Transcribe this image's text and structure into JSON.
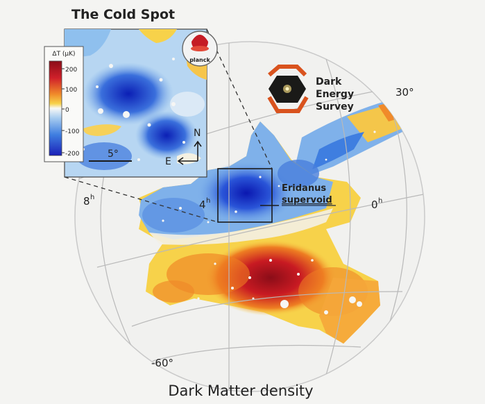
{
  "title": "The Cold Spot",
  "caption": "Dark Matter density",
  "colorbar": {
    "label": "ΔT (μK)",
    "ticks": [
      "200",
      "100",
      "0",
      "-100",
      "-200"
    ]
  },
  "scale_bar_label": "5°",
  "compass": {
    "north": "N",
    "east": "E"
  },
  "logos": {
    "planck": "planck",
    "des_line1": "Dark",
    "des_line2": "Energy",
    "des_line3": "Survey"
  },
  "annotation": {
    "line1": "Eridanus",
    "line2": "supervoid"
  },
  "axis_labels": {
    "ra_8h": "8",
    "ra_4h": "4",
    "ra_0h": "0",
    "ra_unit": "h",
    "dec_30": "30°",
    "dec_m60": "-60°"
  },
  "colors": {
    "deep_blue": "#1a2fd0",
    "blue": "#3f7ee0",
    "light_blue": "#a9cdf0",
    "white": "#f8f8f6",
    "yellow": "#f7d24a",
    "orange": "#ee7d22",
    "red": "#c81a22",
    "dark_red": "#8b0d18",
    "des_orange": "#d9531e",
    "des_navy": "#17324f"
  }
}
